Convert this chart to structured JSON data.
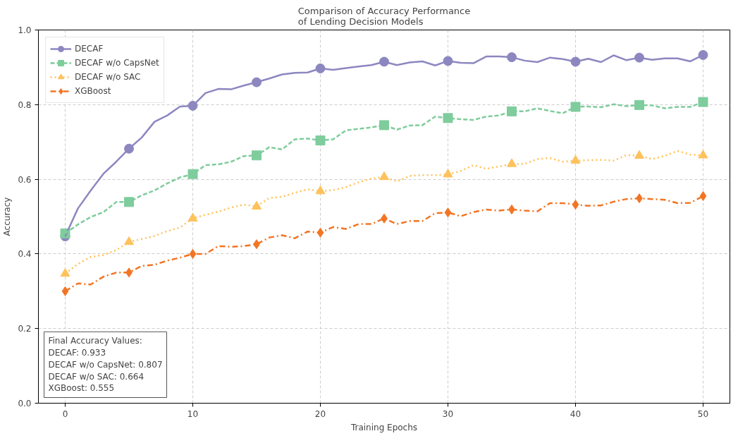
{
  "chart_data": {
    "type": "line",
    "title": "Comparison of Accuracy Performance\nof Lending Decision Models",
    "xlabel": "Training Epochs",
    "ylabel": "Accuracy",
    "x": [
      0,
      1,
      2,
      3,
      4,
      5,
      6,
      7,
      8,
      9,
      10,
      11,
      12,
      13,
      14,
      15,
      16,
      17,
      18,
      19,
      20,
      21,
      22,
      23,
      24,
      25,
      26,
      27,
      28,
      29,
      30,
      31,
      32,
      33,
      34,
      35,
      36,
      37,
      38,
      39,
      40,
      41,
      42,
      43,
      44,
      45,
      46,
      47,
      48,
      49,
      50
    ],
    "series": [
      {
        "type": "scatter",
        "color": "#8d87c0",
        "marker": "circle",
        "x": [
          0,
          5,
          10,
          15,
          20,
          25,
          30,
          35,
          40,
          45,
          50
        ],
        "values": [
          0.447,
          0.682,
          0.797,
          0.86,
          0.897,
          0.915,
          0.917,
          0.927,
          0.915,
          0.926,
          0.933
        ]
      },
      {
        "type": "scatter",
        "color": "#7fcc9c",
        "marker": "square",
        "x": [
          0,
          5,
          10,
          15,
          20,
          25,
          30,
          35,
          40,
          45,
          50
        ],
        "values": [
          0.455,
          0.539,
          0.614,
          0.664,
          0.704,
          0.745,
          0.764,
          0.782,
          0.794,
          0.799,
          0.807
        ]
      },
      {
        "type": "scatter",
        "color": "#fec25c",
        "marker": "triangle",
        "x": [
          0,
          5,
          10,
          15,
          20,
          25,
          30,
          35,
          40,
          45,
          50
        ],
        "values": [
          0.347,
          0.432,
          0.495,
          0.527,
          0.568,
          0.606,
          0.613,
          0.641,
          0.65,
          0.663,
          0.664
        ]
      },
      {
        "type": "scatter",
        "color": "#f27524",
        "marker": "diamond",
        "x": [
          0,
          5,
          10,
          15,
          20,
          25,
          30,
          35,
          40,
          45,
          50
        ],
        "values": [
          0.3,
          0.35,
          0.4,
          0.426,
          0.457,
          0.495,
          0.511,
          0.519,
          0.532,
          0.549,
          0.555
        ]
      },
      {
        "name": "DECAF",
        "color": "#8d87c0",
        "line_style": "solid",
        "values": [
          0.447,
          0.522,
          0.57,
          0.615,
          0.647,
          0.682,
          0.712,
          0.754,
          0.771,
          0.795,
          0.797,
          0.831,
          0.842,
          0.841,
          0.851,
          0.86,
          0.87,
          0.881,
          0.885,
          0.886,
          0.897,
          0.893,
          0.898,
          0.902,
          0.906,
          0.915,
          0.906,
          0.913,
          0.916,
          0.905,
          0.917,
          0.912,
          0.911,
          0.929,
          0.929,
          0.927,
          0.918,
          0.914,
          0.926,
          0.922,
          0.915,
          0.923,
          0.914,
          0.932,
          0.919,
          0.926,
          0.92,
          0.924,
          0.924,
          0.916,
          0.933
        ]
      },
      {
        "name": "DECAF w/o CapsNet",
        "color": "#7fcc9c",
        "line_style": "dashed",
        "values": [
          0.455,
          0.479,
          0.499,
          0.512,
          0.539,
          0.539,
          0.557,
          0.57,
          0.589,
          0.605,
          0.614,
          0.638,
          0.64,
          0.647,
          0.662,
          0.664,
          0.686,
          0.68,
          0.707,
          0.709,
          0.704,
          0.707,
          0.731,
          0.735,
          0.739,
          0.745,
          0.733,
          0.744,
          0.745,
          0.768,
          0.764,
          0.761,
          0.759,
          0.768,
          0.771,
          0.782,
          0.782,
          0.79,
          0.783,
          0.777,
          0.794,
          0.795,
          0.793,
          0.801,
          0.796,
          0.799,
          0.798,
          0.79,
          0.794,
          0.794,
          0.807
        ]
      },
      {
        "name": "DECAF w/o SAC",
        "color": "#fec25c",
        "line_style": "dotted",
        "values": [
          0.347,
          0.373,
          0.392,
          0.397,
          0.41,
          0.432,
          0.44,
          0.448,
          0.461,
          0.471,
          0.495,
          0.505,
          0.513,
          0.524,
          0.532,
          0.527,
          0.55,
          0.553,
          0.564,
          0.573,
          0.568,
          0.571,
          0.579,
          0.592,
          0.602,
          0.606,
          0.594,
          0.609,
          0.611,
          0.611,
          0.613,
          0.622,
          0.638,
          0.628,
          0.634,
          0.641,
          0.641,
          0.654,
          0.657,
          0.647,
          0.65,
          0.651,
          0.652,
          0.65,
          0.665,
          0.663,
          0.654,
          0.663,
          0.676,
          0.666,
          0.664
        ]
      },
      {
        "name": "XGBoost",
        "color": "#f27524",
        "line_style": "dashdot",
        "values": [
          0.3,
          0.321,
          0.318,
          0.339,
          0.35,
          0.35,
          0.368,
          0.371,
          0.382,
          0.39,
          0.4,
          0.4,
          0.421,
          0.419,
          0.421,
          0.426,
          0.444,
          0.45,
          0.442,
          0.46,
          0.457,
          0.472,
          0.467,
          0.48,
          0.48,
          0.495,
          0.48,
          0.488,
          0.488,
          0.509,
          0.511,
          0.501,
          0.512,
          0.519,
          0.516,
          0.519,
          0.516,
          0.514,
          0.536,
          0.536,
          0.532,
          0.529,
          0.53,
          0.54,
          0.547,
          0.549,
          0.547,
          0.545,
          0.536,
          0.537,
          0.555
        ]
      }
    ],
    "xlim": [
      -2.1,
      52.1
    ],
    "xticks": [
      0,
      10,
      20,
      30,
      40,
      50
    ],
    "ylim": [
      0,
      1
    ],
    "yticks": [
      {
        "value": 0,
        "label": "0.0"
      },
      0.2,
      0.4,
      0.6,
      0.8,
      {
        "value": 1,
        "label": "1.0"
      }
    ],
    "grid": true,
    "legend": "top left",
    "annotations": [
      "Final Accuracy Values:\nDECAF: 0.933\nDECAF w/o CapsNet: 0.807\nDECAF w/o SAC: 0.664\nXGBoost: 0.555"
    ]
  }
}
